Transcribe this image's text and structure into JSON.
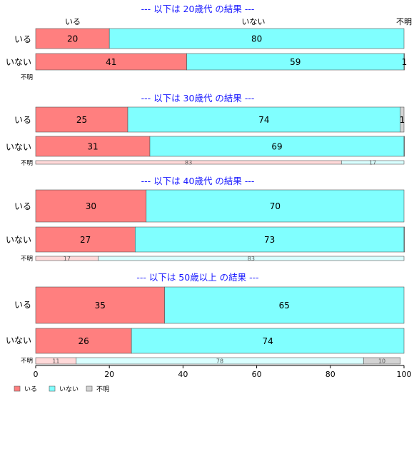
{
  "chart_data": {
    "type": "bar",
    "orientation": "horizontal",
    "stacked": true,
    "normalized_percent": true,
    "xlim": [
      0,
      100
    ],
    "x_ticks": [
      "0",
      "20",
      "40",
      "60",
      "80",
      "100"
    ],
    "top_axis_labels": [
      "いる",
      "いない",
      "不明"
    ],
    "series_colors": {
      "いる": "#ff7f7f",
      "いない": "#80ffff",
      "不明": "#d3d3d3"
    },
    "legend": {
      "placement": "bottom-left",
      "items": [
        {
          "label": "いる",
          "color": "#ff7f7f"
        },
        {
          "label": "いない",
          "color": "#80ffff"
        },
        {
          "label": "不明",
          "color": "#d3d3d3"
        }
      ]
    },
    "panels": [
      {
        "title": "--- 以下は 20歳代 の結果 ---",
        "rows": [
          {
            "label": "いる",
            "values": [
              20,
              80,
              0
            ],
            "value_labels": [
              "20",
              "80",
              ""
            ]
          },
          {
            "label": "いない",
            "values": [
              41,
              59,
              1
            ],
            "value_labels": [
              "41",
              "59",
              "1"
            ]
          },
          {
            "label": "不明",
            "values": [
              0,
              0,
              0
            ],
            "value_labels": [
              "",
              "",
              ""
            ]
          }
        ]
      },
      {
        "title": "--- 以下は 30歳代 の結果 ---",
        "rows": [
          {
            "label": "いる",
            "values": [
              25,
              74,
              1
            ],
            "value_labels": [
              "25",
              "74",
              "1"
            ]
          },
          {
            "label": "いない",
            "values": [
              31,
              69,
              0.5
            ],
            "value_labels": [
              "31",
              "69",
              ""
            ]
          },
          {
            "label": "不明",
            "values": [
              83,
              17,
              0
            ],
            "value_labels": [
              "83",
              "17",
              ""
            ]
          }
        ]
      },
      {
        "title": "--- 以下は 40歳代 の結果 ---",
        "rows": [
          {
            "label": "いる",
            "values": [
              30,
              70,
              0
            ],
            "value_labels": [
              "30",
              "70",
              ""
            ]
          },
          {
            "label": "いない",
            "values": [
              27,
              73,
              0.3
            ],
            "value_labels": [
              "27",
              "73",
              ""
            ]
          },
          {
            "label": "不明",
            "values": [
              17,
              83,
              0
            ],
            "value_labels": [
              "17",
              "83",
              ""
            ]
          }
        ]
      },
      {
        "title": "--- 以下は 50歳以上 の結果 ---",
        "rows": [
          {
            "label": "いる",
            "values": [
              35,
              65,
              0
            ],
            "value_labels": [
              "35",
              "65",
              ""
            ]
          },
          {
            "label": "いない",
            "values": [
              26,
              74,
              0
            ],
            "value_labels": [
              "26",
              "74",
              ""
            ]
          },
          {
            "label": "不明",
            "values": [
              11,
              78,
              10
            ],
            "value_labels": [
              "11",
              "78",
              "10"
            ]
          }
        ]
      }
    ]
  }
}
